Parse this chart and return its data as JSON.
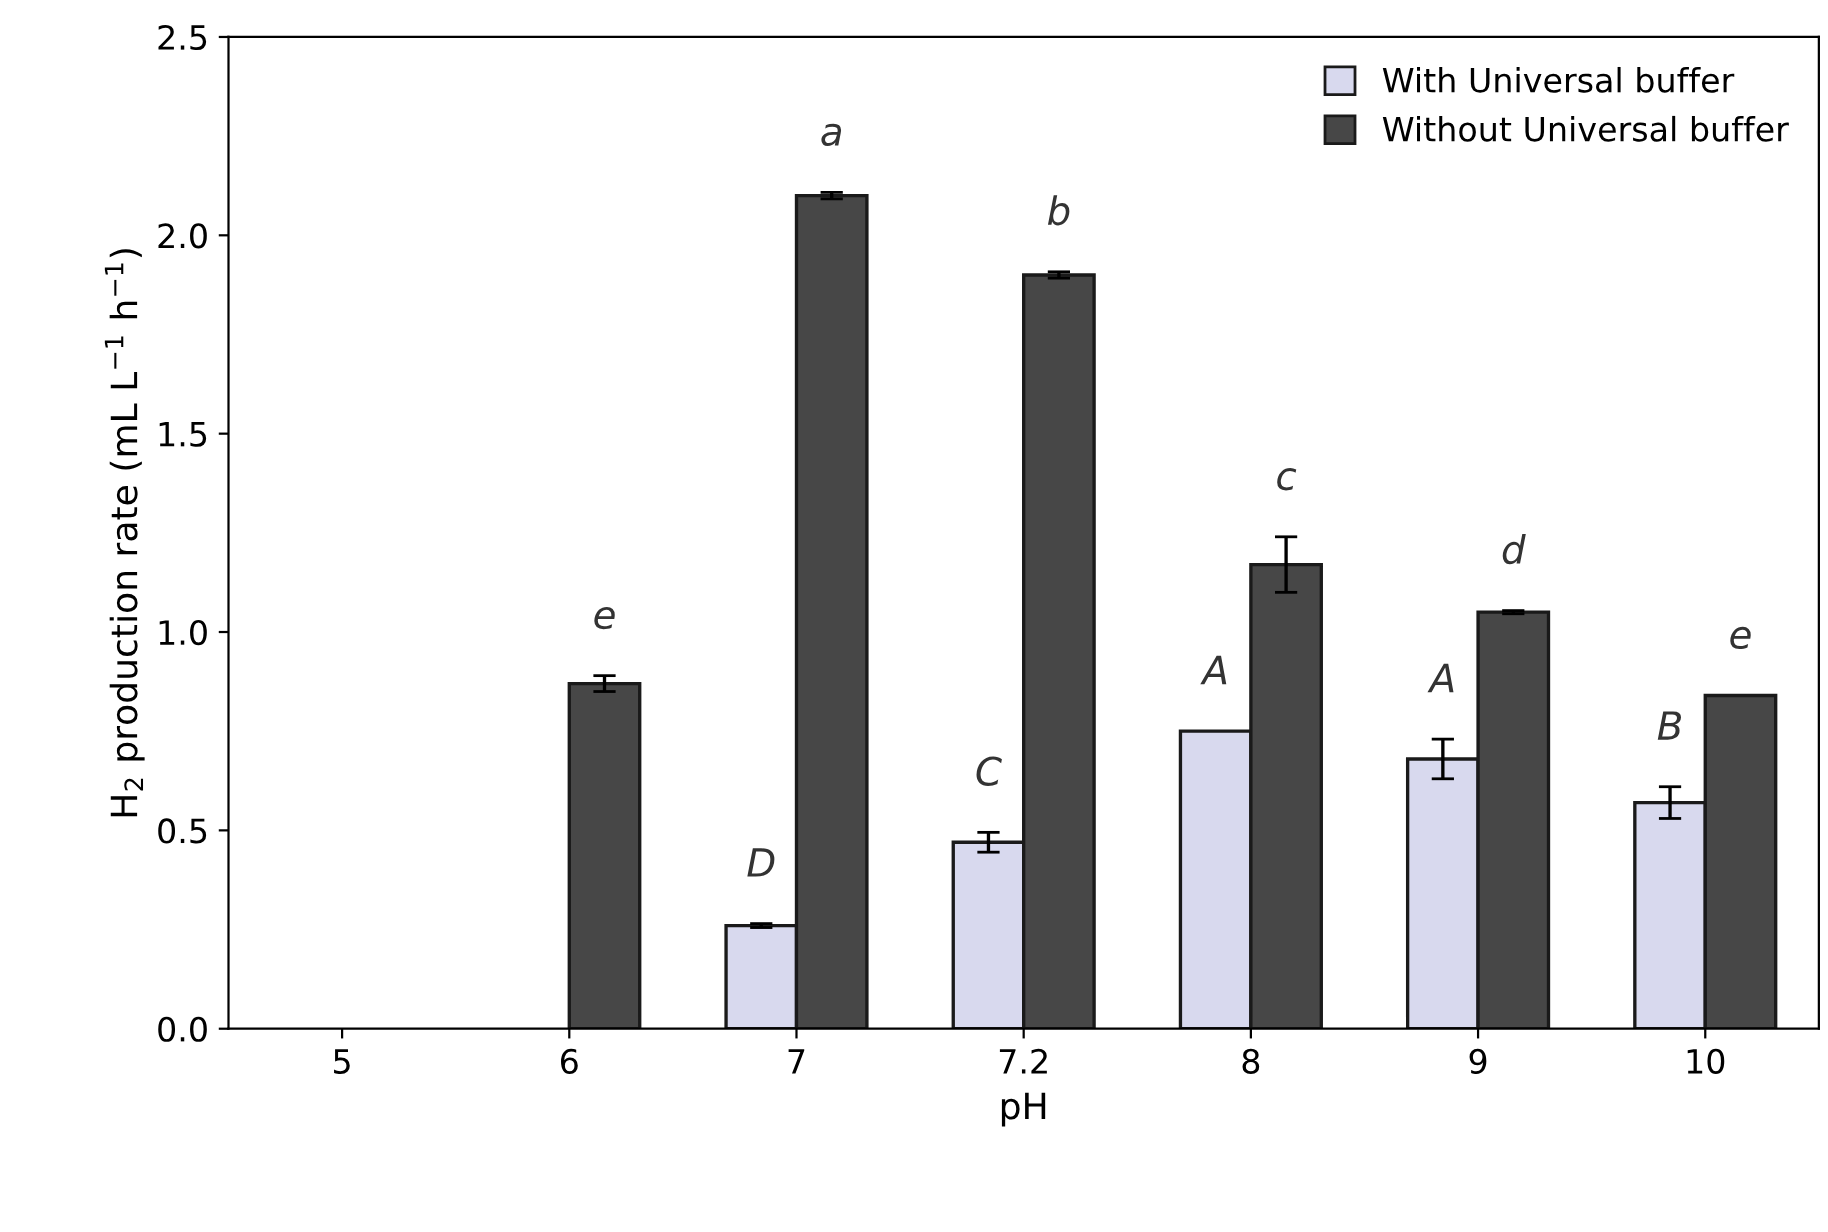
{
  "chart_data": {
    "type": "bar",
    "xlabel": "pH",
    "ylabel": "H$_{2}$ production rate (mL L$^{−1}$ h$^{−1}$)",
    "categories": [
      "5",
      "6",
      "7",
      "7.2",
      "8",
      "9",
      "10"
    ],
    "series": [
      {
        "name": "With Universal buffer",
        "color": "#d8d9ee",
        "values": [
          null,
          null,
          0.26,
          0.47,
          0.75,
          0.68,
          0.57
        ],
        "errors": [
          null,
          null,
          0.005,
          0.025,
          null,
          0.05,
          0.04
        ]
      },
      {
        "name": "Without Universal buffer",
        "color": "#474747",
        "values": [
          null,
          0.87,
          2.1,
          1.9,
          1.17,
          1.05,
          0.84
        ],
        "errors": [
          null,
          0.02,
          0.008,
          0.008,
          0.07,
          0.004,
          null
        ]
      }
    ],
    "ylim": [
      0,
      2.5
    ],
    "yticks": [
      {
        "value": 0,
        "label": "0.0"
      },
      0.5,
      {
        "value": 1,
        "label": "1.0"
      },
      1.5,
      {
        "value": 2,
        "label": "2.0"
      },
      2.5
    ],
    "grid": false,
    "legend": "top right",
    "annotations": [
      {
        "text": "e",
        "x": "6",
        "y": 0.87
      },
      {
        "text": "D",
        "x": "7",
        "y": 0.26
      },
      {
        "text": "a",
        "x": "7",
        "y": 2.1
      },
      {
        "text": "C",
        "x": "7.2",
        "y": 0.47
      },
      {
        "text": "b",
        "x": "7.2",
        "y": 1.9
      },
      {
        "text": "A",
        "x": "8",
        "y": 0.75
      },
      {
        "text": "c",
        "x": "8",
        "y": 1.17
      },
      {
        "text": "A",
        "x": "9",
        "y": 0.68
      },
      {
        "text": "d",
        "x": "9",
        "y": 1.05
      },
      {
        "text": "B",
        "x": "10",
        "y": 0.57
      },
      {
        "text": "e",
        "x": "10",
        "y": 0.84
      }
    ]
  }
}
